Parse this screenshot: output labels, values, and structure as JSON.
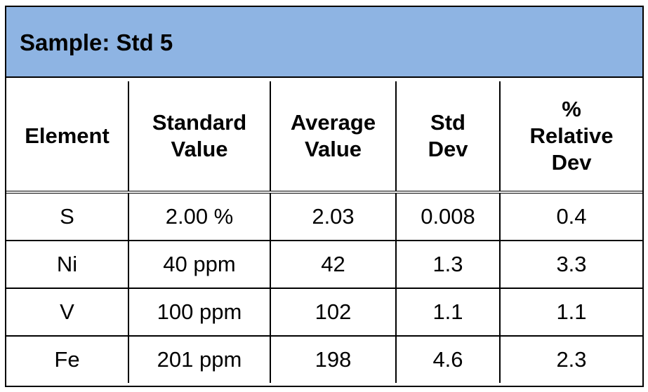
{
  "title": "Sample: Std 5",
  "headers": {
    "element": "Element",
    "standard_value": "Standard Value",
    "average_value": "Average Value",
    "std_dev": "Std Dev",
    "relative_dev": "% Relative Dev"
  },
  "rows": [
    {
      "element": "S",
      "standard_value": "2.00 %",
      "average_value": "2.03",
      "std_dev": "0.008",
      "relative_dev": "0.4"
    },
    {
      "element": "Ni",
      "standard_value": "40 ppm",
      "average_value": "42",
      "std_dev": "1.3",
      "relative_dev": "3.3"
    },
    {
      "element": "V",
      "standard_value": "100 ppm",
      "average_value": "102",
      "std_dev": "1.1",
      "relative_dev": "1.1"
    },
    {
      "element": "Fe",
      "standard_value": "201 ppm",
      "average_value": "198",
      "std_dev": "4.6",
      "relative_dev": "2.3"
    }
  ],
  "colors": {
    "title_background": "#8eb4e3",
    "border": "#000000"
  }
}
